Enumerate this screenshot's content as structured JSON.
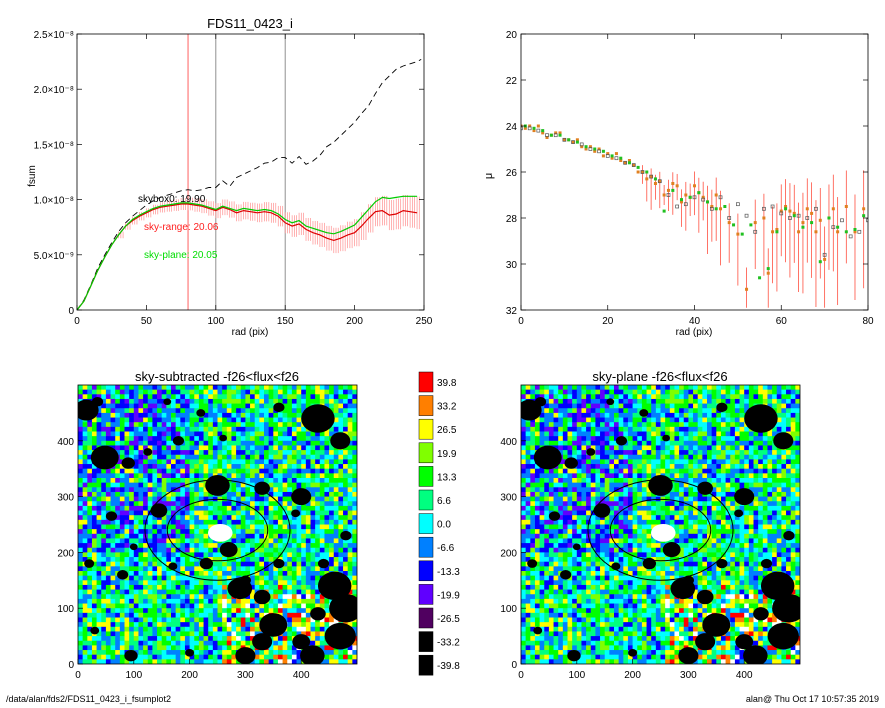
{
  "colors": {
    "red": "#ff0000",
    "orange": "#ff7f00",
    "yellow": "#ffff00",
    "ygreen": "#80ff00",
    "green": "#00ff00",
    "sgreen": "#00ff80",
    "cyan": "#00ffff",
    "azure": "#0080ff",
    "blue": "#0000ff",
    "violet": "#6000ff",
    "purple": "#500060",
    "black": "#000000",
    "vline_red": "#ff6060",
    "vline_gray": "#909090",
    "ebar": "#ff9090"
  },
  "footer": {
    "left": "/data/alan/fds2/FDS11_0423_i_fsumplot2",
    "right": "alan@  Thu Oct 17 10:57:35 2019"
  },
  "chart_data": [
    {
      "type": "line",
      "title": "FDS11_0423_i",
      "xlabel": "rad (pix)",
      "ylabel": "fsum",
      "xlim": [
        0,
        250
      ],
      "ylim": [
        0,
        2.5e-08
      ],
      "xticks": [
        "0",
        "50",
        "100",
        "150",
        "200",
        "250"
      ],
      "yticks": [
        "0",
        "5.0×10⁻⁹",
        "1.0×10⁻⁸",
        "1.5×10⁻⁸",
        "2.0×10⁻⁸",
        "2.5×10⁻⁸"
      ],
      "vlines": [
        {
          "x": 80,
          "color": "red"
        },
        {
          "x": 100,
          "color": "gray"
        },
        {
          "x": 150,
          "color": "gray"
        }
      ],
      "annotations": [
        {
          "text": "skybox0: 19.90",
          "x": 45,
          "y": 1e-08,
          "color": "black"
        },
        {
          "text": "sky-range: 20.06",
          "x": 48,
          "y": 7.5e-09,
          "color": "red"
        },
        {
          "text": "sky-plane: 20.05",
          "x": 48,
          "y": 5e-09,
          "color": "green"
        }
      ],
      "series": [
        {
          "style": "dashed",
          "color": "black",
          "x": [
            0,
            5,
            10,
            15,
            20,
            25,
            30,
            35,
            40,
            45,
            50,
            55,
            60,
            65,
            70,
            75,
            80,
            85,
            90,
            95,
            100,
            105,
            110,
            115,
            120,
            125,
            130,
            135,
            140,
            145,
            150,
            155,
            160,
            165,
            170,
            175,
            180,
            185,
            190,
            195,
            200,
            205,
            210,
            215,
            220,
            225,
            230,
            235,
            240,
            245,
            248
          ],
          "y": [
            0,
            9e-10,
            2.3e-09,
            3.8e-09,
            5e-09,
            6.1e-09,
            7.1e-09,
            7.9e-09,
            8.5e-09,
            9e-09,
            9.5e-09,
            9.9e-09,
            1.02e-08,
            1.04e-08,
            1.06e-08,
            1.08e-08,
            1.09e-08,
            1.08e-08,
            1.09e-08,
            1.11e-08,
            1.11e-08,
            1.17e-08,
            1.12e-08,
            1.2e-08,
            1.23e-08,
            1.26e-08,
            1.29e-08,
            1.33e-08,
            1.34e-08,
            1.38e-08,
            1.38e-08,
            1.33e-08,
            1.39e-08,
            1.32e-08,
            1.35e-08,
            1.4e-08,
            1.48e-08,
            1.52e-08,
            1.58e-08,
            1.64e-08,
            1.7e-08,
            1.78e-08,
            1.85e-08,
            1.96e-08,
            2.06e-08,
            2.12e-08,
            2.18e-08,
            2.21e-08,
            2.23e-08,
            2.25e-08,
            2.27e-08
          ]
        },
        {
          "style": "solid",
          "color": "red",
          "x": [
            0,
            5,
            10,
            15,
            20,
            25,
            30,
            35,
            40,
            45,
            50,
            55,
            60,
            65,
            70,
            75,
            80,
            85,
            90,
            95,
            100,
            105,
            110,
            115,
            120,
            125,
            130,
            135,
            140,
            145,
            150,
            155,
            160,
            165,
            170,
            175,
            180,
            185,
            190,
            195,
            200,
            205,
            210,
            215,
            220,
            225,
            230,
            235,
            240,
            245
          ],
          "y": [
            0,
            8e-10,
            2.2e-09,
            3.6e-09,
            4.8e-09,
            5.9e-09,
            6.8e-09,
            7.6e-09,
            8.1e-09,
            8.5e-09,
            8.8e-09,
            9.1e-09,
            9.3e-09,
            9.4e-09,
            9.5e-09,
            9.6e-09,
            9.6e-09,
            9.5e-09,
            9.4e-09,
            9.2e-09,
            9e-09,
            9.3e-09,
            9.1e-09,
            8.8e-09,
            9e-09,
            8.9e-09,
            8.8e-09,
            8.9e-09,
            8.8e-09,
            8.5e-09,
            7.9e-09,
            7.6e-09,
            7.8e-09,
            7.3e-09,
            7e-09,
            6.8e-09,
            6.5e-09,
            6.3e-09,
            6.5e-09,
            6.8e-09,
            7e-09,
            7.6e-09,
            8.3e-09,
            8.9e-09,
            9e-09,
            8.6e-09,
            8.7e-09,
            9e-09,
            8.9e-09,
            8.8e-09
          ]
        },
        {
          "style": "solid",
          "color": "green",
          "x": [
            0,
            5,
            10,
            15,
            20,
            25,
            30,
            35,
            40,
            45,
            50,
            55,
            60,
            65,
            70,
            75,
            80,
            85,
            90,
            95,
            100,
            105,
            110,
            115,
            120,
            125,
            130,
            135,
            140,
            145,
            150,
            155,
            160,
            165,
            170,
            175,
            180,
            185,
            190,
            195,
            200,
            205,
            210,
            215,
            220,
            225,
            230,
            235,
            240,
            245
          ],
          "y": [
            0,
            8e-10,
            2.2e-09,
            3.6e-09,
            4.8e-09,
            5.9e-09,
            6.8e-09,
            7.6e-09,
            8.2e-09,
            8.6e-09,
            8.9e-09,
            9.2e-09,
            9.4e-09,
            9.5e-09,
            9.6e-09,
            9.7e-09,
            9.7e-09,
            9.6e-09,
            9.5e-09,
            9.3e-09,
            9.1e-09,
            9.4e-09,
            9.2e-09,
            9e-09,
            9.2e-09,
            9.1e-09,
            9e-09,
            9.1e-09,
            9e-09,
            8.7e-09,
            8.2e-09,
            7.9e-09,
            8.1e-09,
            7.6e-09,
            7.4e-09,
            7.2e-09,
            7e-09,
            6.9e-09,
            7.1e-09,
            7.4e-09,
            7.7e-09,
            8.4e-09,
            9.1e-09,
            9.8e-09,
            1.02e-08,
            1.01e-08,
            1.02e-08,
            1.03e-08,
            1.03e-08,
            1.03e-08
          ]
        }
      ]
    },
    {
      "type": "scatter",
      "xlabel": "rad (pix)",
      "ylabel": "μ",
      "xlim": [
        0,
        80
      ],
      "ylim": [
        32,
        20
      ],
      "xticks": [
        "0",
        "20",
        "40",
        "60",
        "80"
      ],
      "yticks": [
        "20",
        "22",
        "24",
        "26",
        "28",
        "30",
        "32"
      ],
      "series": [
        {
          "color": "orange",
          "x": [
            0,
            1,
            2,
            3,
            4,
            5,
            6,
            7,
            8,
            9,
            10,
            11,
            12,
            13,
            14,
            15,
            16,
            17,
            18,
            19,
            20,
            21,
            22,
            23,
            24,
            25,
            26,
            27,
            28,
            29,
            30,
            31,
            32,
            33,
            34,
            35,
            36,
            37,
            38,
            39,
            40,
            41,
            42,
            43,
            44,
            45,
            46,
            48,
            50,
            52,
            54,
            56,
            57,
            58,
            59,
            60,
            61,
            62,
            63,
            64,
            65,
            66,
            67,
            68,
            69,
            70,
            71,
            72,
            73,
            75,
            77,
            79
          ],
          "y": [
            24.0,
            24.1,
            24.0,
            24.2,
            24.0,
            24.3,
            24.5,
            24.4,
            24.3,
            24.3,
            24.6,
            24.6,
            24.7,
            24.6,
            24.9,
            25.0,
            24.9,
            25.1,
            25.0,
            25.3,
            25.2,
            25.4,
            25.2,
            25.5,
            25.6,
            25.5,
            25.7,
            26.0,
            26.0,
            26.3,
            26.2,
            26.5,
            26.4,
            27.0,
            26.8,
            26.5,
            26.6,
            27.3,
            27.0,
            27.1,
            26.6,
            26.9,
            27.1,
            27.3,
            27.5,
            27.0,
            27.6,
            28.2,
            28.7,
            31.1,
            28.2,
            28.0,
            30.4,
            28.6,
            28.5,
            27.7,
            27.5,
            27.7,
            27.8,
            28.6,
            28.2,
            27.6,
            27.8,
            28.6,
            28.1,
            29.8,
            28.0,
            27.6,
            28.6,
            27.5,
            28.6,
            27.6
          ]
        },
        {
          "color": "black",
          "x": [
            0,
            2,
            4,
            6,
            8,
            10,
            12,
            14,
            16,
            18,
            20,
            22,
            24,
            26,
            28,
            30,
            32,
            34,
            36,
            38,
            40,
            42,
            44,
            46,
            48,
            50,
            52,
            54,
            56,
            58,
            60,
            62,
            64,
            66,
            68,
            70,
            72,
            74,
            76,
            78,
            80
          ],
          "y": [
            24.1,
            24.1,
            24.2,
            24.4,
            24.4,
            24.6,
            24.7,
            24.8,
            25.0,
            25.1,
            25.3,
            25.4,
            25.6,
            25.7,
            26.0,
            26.2,
            26.4,
            27.0,
            27.5,
            27.4,
            27.1,
            27.2,
            27.6,
            27.1,
            28.0,
            27.4,
            27.9,
            28.6,
            27.6,
            27.5,
            27.8,
            28.0,
            27.9,
            28.0,
            27.6,
            29.6,
            28.4,
            28.1,
            28.8,
            28.6,
            28.1
          ]
        },
        {
          "color": "green",
          "x": [
            1,
            3,
            5,
            7,
            9,
            11,
            13,
            15,
            17,
            19,
            21,
            23,
            25,
            27,
            29,
            31,
            33,
            35,
            37,
            39,
            41,
            43,
            45,
            47,
            49,
            51,
            53,
            55,
            57,
            59,
            61,
            63,
            65,
            67,
            69,
            71,
            73,
            75,
            77,
            79
          ],
          "y": [
            24.0,
            24.1,
            24.2,
            24.4,
            24.4,
            24.6,
            24.7,
            24.9,
            25.0,
            25.1,
            25.3,
            25.4,
            25.6,
            25.8,
            26.0,
            26.3,
            27.7,
            26.8,
            27.2,
            27.1,
            26.9,
            27.3,
            27.6,
            27.5,
            28.3,
            28.7,
            28.3,
            30.6,
            30.2,
            28.6,
            27.6,
            27.9,
            28.4,
            28.2,
            29.9,
            28.0,
            28.4,
            28.6,
            28.5,
            27.9
          ]
        }
      ]
    },
    {
      "type": "heatmap",
      "title": "sky-subtracted -f26<flux<f26",
      "xlim": [
        0,
        500
      ],
      "ylim": [
        0,
        500
      ],
      "xticks": [
        "0",
        "100",
        "200",
        "300",
        "400"
      ],
      "yticks": [
        "0",
        "100",
        "200",
        "300",
        "400"
      ],
      "ellipses": [
        {
          "cx": 250,
          "cy": 240,
          "rx": 130,
          "ry": 90
        },
        {
          "cx": 250,
          "cy": 240,
          "rx": 90,
          "ry": 55
        }
      ]
    },
    {
      "type": "heatmap",
      "title": "sky-plane -f26<flux<f26",
      "xlim": [
        0,
        500
      ],
      "ylim": [
        0,
        500
      ],
      "xticks": [
        "0",
        "100",
        "200",
        "300",
        "400"
      ],
      "yticks": [
        "0",
        "100",
        "200",
        "300",
        "400"
      ],
      "ellipses": [
        {
          "cx": 250,
          "cy": 240,
          "rx": 130,
          "ry": 90
        },
        {
          "cx": 250,
          "cy": 240,
          "rx": 90,
          "ry": 55
        }
      ]
    },
    {
      "type": "colorbar",
      "labels": [
        "39.8",
        "33.2",
        "26.5",
        "19.9",
        "13.3",
        "6.6",
        "0.0",
        "-6.6",
        "-13.3",
        "-19.9",
        "-26.5",
        "-33.2",
        "-39.8"
      ],
      "colors": [
        "#ff0000",
        "#ff7f00",
        "#ffff00",
        "#80ff00",
        "#00ff00",
        "#00ff80",
        "#00ffff",
        "#0080ff",
        "#0000ff",
        "#6000ff",
        "#500060",
        "#000000",
        "#000000"
      ]
    }
  ]
}
